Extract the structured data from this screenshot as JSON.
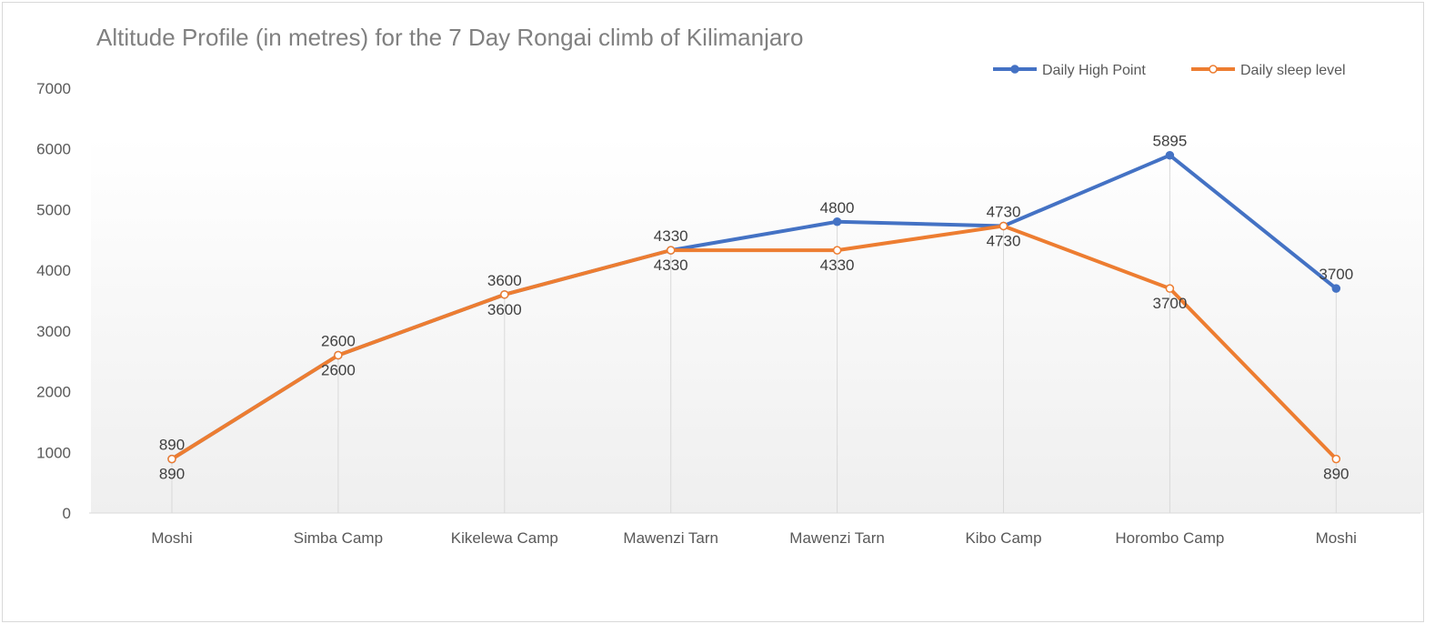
{
  "chart_data": {
    "type": "line",
    "title": "Altitude Profile (in metres) for the 7 Day Rongai climb of Kilimanjaro",
    "xlabel": "",
    "ylabel": "",
    "ylim": [
      0,
      7000
    ],
    "yticks": [
      0,
      1000,
      2000,
      3000,
      4000,
      5000,
      6000,
      7000
    ],
    "legend_position": "top-right",
    "categories": [
      "Moshi",
      "Simba Camp",
      "Kikelewa Camp",
      "Mawenzi Tarn",
      "Mawenzi Tarn",
      "Kibo Camp",
      "Horombo Camp",
      "Moshi"
    ],
    "series": [
      {
        "name": "Daily High Point",
        "color": "#4472c4",
        "marker": "filled-circle",
        "values": [
          890,
          2600,
          3600,
          4330,
          4800,
          4730,
          5895,
          3700
        ]
      },
      {
        "name": "Daily sleep level",
        "color": "#ed7d31",
        "marker": "hollow-circle",
        "values": [
          890,
          2600,
          3600,
          4330,
          4330,
          4730,
          3700,
          890
        ]
      }
    ],
    "data_labels": true,
    "drop_lines": true
  }
}
